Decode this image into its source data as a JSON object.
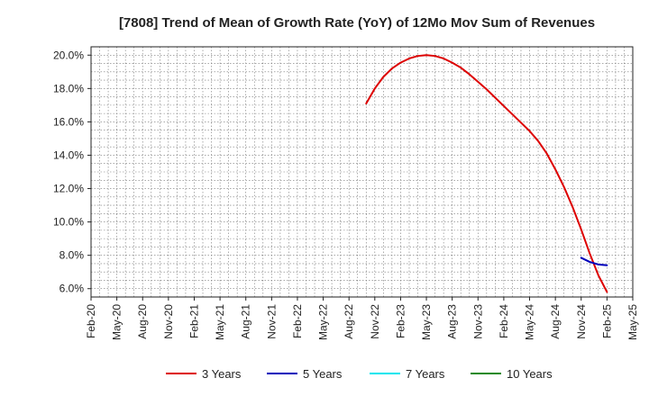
{
  "chart_data": {
    "type": "line",
    "title": "[7808]  Trend of Mean of Growth Rate (YoY) of 12Mo Mov Sum of Revenues",
    "xlabel": "",
    "ylabel": "",
    "grid": true,
    "legend_position": "bottom",
    "ylim": [
      5.5,
      20.5
    ],
    "y_ticks": [
      6,
      8,
      10,
      12,
      14,
      16,
      18,
      20
    ],
    "y_tick_labels": [
      "6.0%",
      "8.0%",
      "10.0%",
      "12.0%",
      "14.0%",
      "16.0%",
      "18.0%",
      "20.0%"
    ],
    "x_tick_labels": [
      "Feb-20",
      "May-20",
      "Aug-20",
      "Nov-20",
      "Feb-21",
      "May-21",
      "Aug-21",
      "Nov-21",
      "Feb-22",
      "May-22",
      "Aug-22",
      "Nov-22",
      "Feb-23",
      "May-23",
      "Aug-23",
      "Nov-23",
      "Feb-24",
      "May-24",
      "Aug-24",
      "Nov-24",
      "Feb-25",
      "May-25"
    ],
    "x_range_months": [
      0,
      63
    ],
    "series": [
      {
        "name": "3 Years",
        "color": "#dd0000",
        "x": [
          32,
          33,
          34,
          35,
          36,
          37,
          38,
          39,
          40,
          41,
          42,
          43,
          44,
          45,
          46,
          47,
          48,
          49,
          50,
          51,
          52,
          53,
          54,
          55,
          56,
          57,
          58,
          59,
          60
        ],
        "y": [
          17.1,
          18.0,
          18.7,
          19.2,
          19.55,
          19.8,
          19.95,
          20.0,
          19.95,
          19.8,
          19.55,
          19.25,
          18.85,
          18.4,
          17.95,
          17.45,
          16.95,
          16.45,
          15.95,
          15.45,
          14.85,
          14.1,
          13.15,
          12.1,
          10.9,
          9.55,
          8.1,
          6.8,
          5.8
        ]
      },
      {
        "name": "5 Years",
        "color": "#0000bb",
        "x": [
          57,
          58,
          59,
          60
        ],
        "y": [
          7.85,
          7.6,
          7.45,
          7.4
        ]
      },
      {
        "name": "7 Years",
        "color": "#00e5ee",
        "x": [],
        "y": []
      },
      {
        "name": "10 Years",
        "color": "#1a8a1a",
        "x": [],
        "y": []
      }
    ]
  }
}
